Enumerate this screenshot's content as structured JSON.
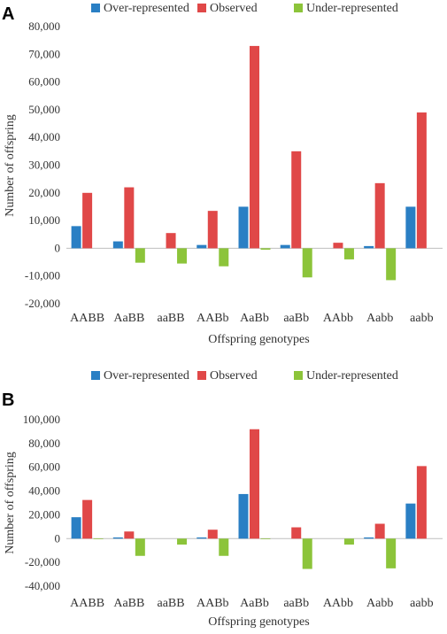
{
  "chart_data": [
    {
      "type": "bar",
      "panel_label": "A",
      "categories": [
        "AABB",
        "AaBB",
        "aaBB",
        "AABb",
        "AaBb",
        "aaBb",
        "AAbb",
        "Aabb",
        "aabb"
      ],
      "series": [
        {
          "name": "Over-represented",
          "color": "#2a7fc4",
          "values": [
            8000,
            2500,
            0,
            1200,
            15000,
            1200,
            0,
            800,
            15000
          ]
        },
        {
          "name": "Observed",
          "color": "#e04848",
          "values": [
            20000,
            22000,
            5500,
            13500,
            73000,
            35000,
            2000,
            23500,
            49000
          ]
        },
        {
          "name": "Under-represented",
          "color": "#8cc43a",
          "values": [
            0,
            -5200,
            -5500,
            -6500,
            -500,
            -10500,
            -4000,
            -11500,
            0
          ]
        }
      ],
      "xlabel": "Offspring genotypes",
      "ylabel": "Number of offspring",
      "ylim": [
        -20000,
        80000
      ],
      "yticks": [
        -20000,
        -10000,
        0,
        10000,
        20000,
        30000,
        40000,
        50000,
        60000,
        70000,
        80000
      ],
      "ytick_labels": [
        "-20,000",
        "-10,000",
        "0",
        "10,000",
        "20,000",
        "30,000",
        "40,000",
        "50,000",
        "60,000",
        "70,000",
        "80,000"
      ],
      "grid": false,
      "legend": "top"
    },
    {
      "type": "bar",
      "panel_label": "B",
      "categories": [
        "AABB",
        "AaBB",
        "aaBB",
        "AABb",
        "AaBb",
        "aaBb",
        "AAbb",
        "Aabb",
        "aabb"
      ],
      "series": [
        {
          "name": "Over-represented",
          "color": "#2a7fc4",
          "values": [
            18000,
            1000,
            0,
            1000,
            37500,
            0,
            0,
            1000,
            29500
          ]
        },
        {
          "name": "Observed",
          "color": "#e04848",
          "values": [
            32500,
            6000,
            0,
            7500,
            92000,
            9500,
            0,
            12500,
            61000
          ]
        },
        {
          "name": "Under-represented",
          "color": "#8cc43a",
          "values": [
            -500,
            -14500,
            -5000,
            -14500,
            -500,
            -25500,
            -5000,
            -25000,
            0
          ]
        }
      ],
      "xlabel": "Offspring genotypes",
      "ylabel": "Number of offspring",
      "ylim": [
        -40000,
        100000
      ],
      "yticks": [
        -40000,
        -20000,
        0,
        20000,
        40000,
        60000,
        80000,
        100000
      ],
      "ytick_labels": [
        "-40,000",
        "-20,000",
        "0",
        "20,000",
        "40,000",
        "60,000",
        "80,000",
        "100,000"
      ],
      "grid": false,
      "legend": "top"
    }
  ]
}
